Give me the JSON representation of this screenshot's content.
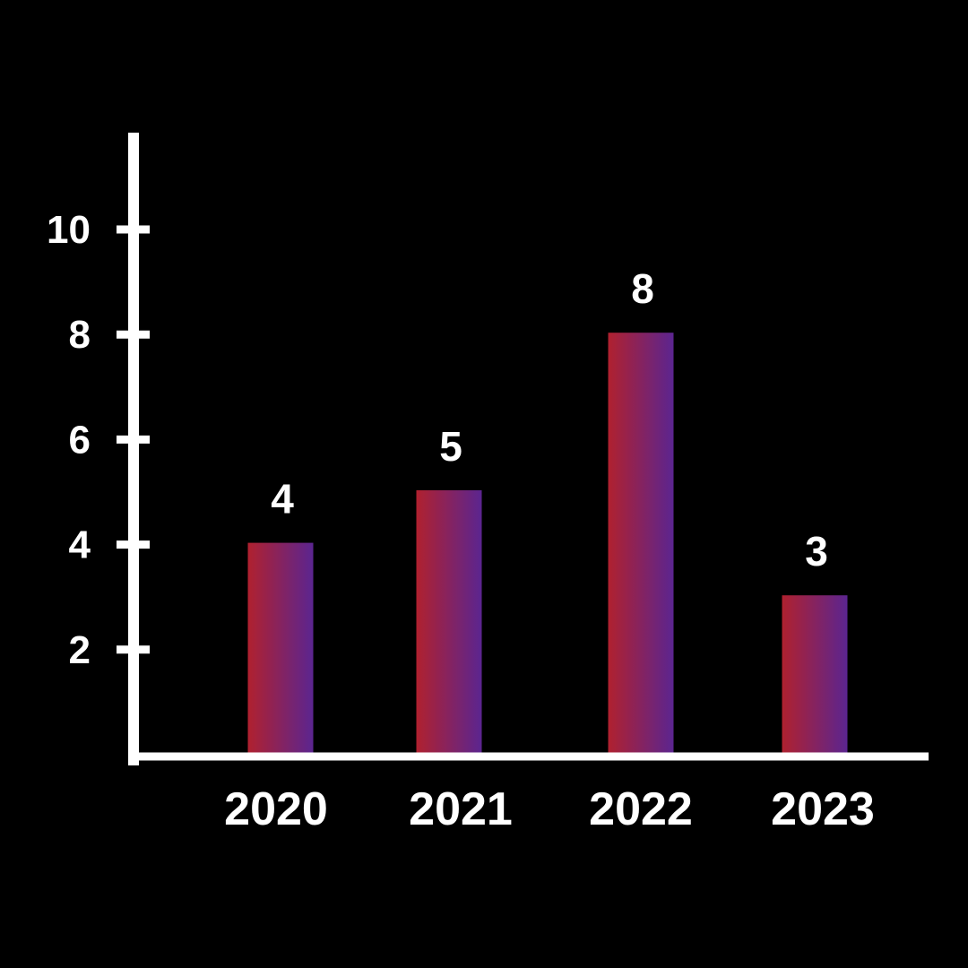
{
  "chart_data": {
    "type": "bar",
    "title": "",
    "xlabel": "",
    "ylabel": "",
    "categories": [
      "2020",
      "2021",
      "2022",
      "2023"
    ],
    "values": [
      4,
      5,
      8,
      3
    ],
    "data_labels": [
      "4",
      "5",
      "8",
      "3"
    ],
    "y_ticks": [
      2,
      4,
      6,
      8,
      10
    ],
    "y_tick_labels": [
      "2",
      "4",
      "6",
      "8",
      "10"
    ],
    "ylim": [
      0,
      11.8
    ],
    "grid": false,
    "legend": "none",
    "colors": {
      "background": "#000000",
      "axis": "#ffffff",
      "text": "#ffffff",
      "bar_gradient_start": "#b0212f",
      "bar_gradient_end": "#5b2590"
    }
  }
}
